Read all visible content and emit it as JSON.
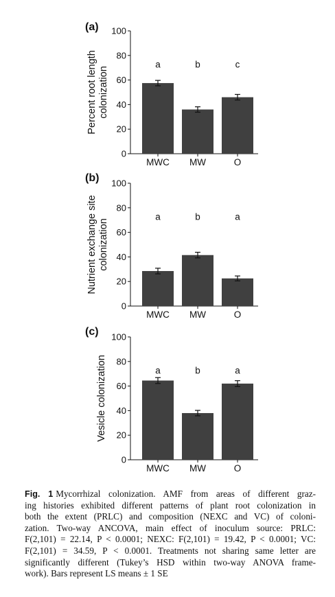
{
  "chart_data": [
    {
      "panel": "(a)",
      "type": "bar",
      "categories": [
        "MWC",
        "MW",
        "O"
      ],
      "values": [
        57.5,
        36,
        46
      ],
      "errors": [
        2.2,
        2.2,
        2.3
      ],
      "letters": [
        "a",
        "b",
        "c"
      ],
      "ylabel_lines": [
        "Percent root length",
        "colonization"
      ],
      "ylim": [
        0,
        100
      ],
      "yticks": [
        0,
        20,
        40,
        60,
        80,
        100
      ],
      "bar_color": "#404040"
    },
    {
      "panel": "(b)",
      "type": "bar",
      "categories": [
        "MWC",
        "MW",
        "O"
      ],
      "values": [
        28.5,
        41.5,
        22.5
      ],
      "errors": [
        2.3,
        2.3,
        2.0
      ],
      "letters": [
        "a",
        "b",
        "a"
      ],
      "ylabel_lines": [
        "Nutrient exchange site",
        "colonization"
      ],
      "ylim": [
        0,
        100
      ],
      "yticks": [
        0,
        20,
        40,
        60,
        80,
        100
      ],
      "bar_color": "#404040"
    },
    {
      "panel": "(c)",
      "type": "bar",
      "categories": [
        "MWC",
        "MW",
        "O"
      ],
      "values": [
        64.5,
        38,
        62
      ],
      "errors": [
        2.4,
        2.2,
        2.4
      ],
      "letters": [
        "a",
        "b",
        "a"
      ],
      "ylabel_lines": [
        "Vesicle colonization"
      ],
      "ylim": [
        0,
        100
      ],
      "yticks": [
        0,
        20,
        40,
        60,
        80,
        100
      ],
      "bar_color": "#404040"
    }
  ],
  "caption": {
    "label": "Fig. 1",
    "lines": [
      "Mycorrhizal colonization. AMF from areas of different graz-",
      "ing histories exhibited different patterns of plant root colonization in",
      "both the extent (PRLC) and composition (NEXC and VC) of coloni-",
      "zation. Two-way ANCOVA, main effect of inoculum source: PRLC:",
      "F(2,101) = 22.14, P < 0.0001; NEXC: F(2,101) = 19.42, P < 0.0001; VC:",
      "F(2,101) = 34.59, P < 0.0001. Treatments not sharing same letter are",
      "significantly different (Tukey’s HSD within two-way ANOVA frame-",
      "work). Bars represent LS means ± 1 SE"
    ]
  }
}
